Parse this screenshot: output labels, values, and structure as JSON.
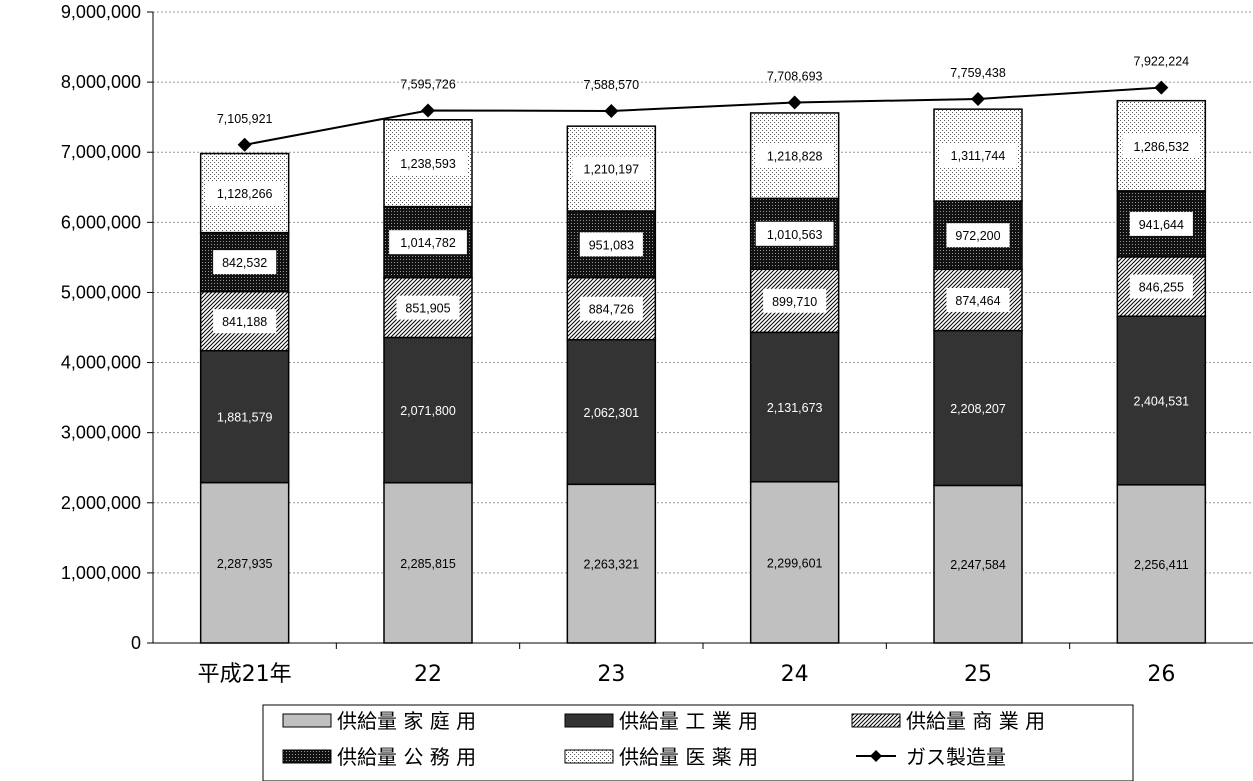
{
  "chart_data": {
    "type": "bar",
    "stacked": true,
    "categories": [
      "平成21年",
      "22",
      "23",
      "24",
      "25",
      "26"
    ],
    "ylim": [
      0,
      9000000
    ],
    "yticks": [
      "0",
      "1,000,000",
      "2,000,000",
      "3,000,000",
      "4,000,000",
      "5,000,000",
      "6,000,000",
      "7,000,000",
      "8,000,000",
      "9,000,000"
    ],
    "grid": true,
    "legend_position": "bottom",
    "series": [
      {
        "name": "供給量 家 庭 用",
        "values": [
          2287935,
          2285815,
          2263321,
          2299601,
          2247584,
          2256411
        ],
        "labels": [
          "2,287,935",
          "2,285,815",
          "2,263,321",
          "2,299,601",
          "2,247,584",
          "2,256,411"
        ],
        "color": "#c0c0c0",
        "pattern": "solid"
      },
      {
        "name": "供給量 工 業 用",
        "values": [
          1881579,
          2071800,
          2062301,
          2131673,
          2208207,
          2404531
        ],
        "labels": [
          "1,881,579",
          "2,071,800",
          "2,062,301",
          "2,131,673",
          "2,208,207",
          "2,404,531"
        ],
        "color": "#333333",
        "pattern": "solid"
      },
      {
        "name": "供給量 商 業 用",
        "values": [
          841188,
          851905,
          884726,
          899710,
          874464,
          846255
        ],
        "labels": [
          "841,188",
          "851,905",
          "884,726",
          "899,710",
          "874,464",
          "846,255"
        ],
        "color": "#000000",
        "pattern": "diagonal"
      },
      {
        "name": "供給量 公 務 用",
        "values": [
          842532,
          1014782,
          951083,
          1010563,
          972200,
          941644
        ],
        "labels": [
          "842,532",
          "1,014,782",
          "951,083",
          "1,010,563",
          "972,200",
          "941,644"
        ],
        "color": "#000000",
        "pattern": "dense-dots"
      },
      {
        "name": "供給量 医 薬 用",
        "values": [
          1128266,
          1238593,
          1210197,
          1218828,
          1311744,
          1286532
        ],
        "labels": [
          "1,128,266",
          "1,238,593",
          "1,210,197",
          "1,218,828",
          "1,311,744",
          "1,286,532"
        ],
        "color": "#000000",
        "pattern": "sparse-dots"
      }
    ],
    "line": {
      "name": "ガス製造量",
      "values": [
        7105921,
        7595726,
        7588570,
        7708693,
        7759438,
        7922224
      ],
      "labels": [
        "7,105,921",
        "7,595,726",
        "7,588,570",
        "7,708,693",
        "7,759,438",
        "7,922,224"
      ],
      "color": "#000000",
      "marker": "diamond"
    }
  }
}
